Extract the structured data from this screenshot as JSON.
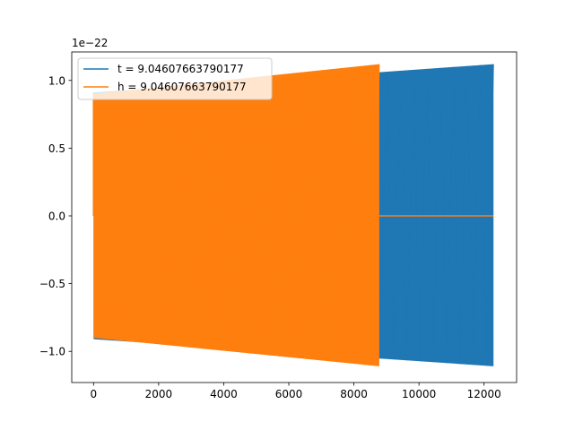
{
  "chart_data": {
    "type": "line",
    "offset_text": "1e−22",
    "xlim": [
      -670,
      13000
    ],
    "ylim": [
      -1.23,
      1.21
    ],
    "xticks": [
      0,
      2000,
      4000,
      6000,
      8000,
      10000,
      12000
    ],
    "xtick_labels": [
      "0",
      "2000",
      "4000",
      "6000",
      "8000",
      "10000",
      "12000"
    ],
    "yticks": [
      -1.0,
      -0.5,
      0.0,
      0.5,
      1.0
    ],
    "ytick_labels": [
      "−1.0",
      "−0.5",
      "0.0",
      "0.5",
      "1.0"
    ],
    "grid": false,
    "legend_position": "upper-left",
    "series": [
      {
        "name": "t = 9.04607663790177",
        "color": "#1f77b4",
        "x_end": 12290,
        "env_upper": [
          [
            0,
            0.91
          ],
          [
            12290,
            1.12
          ]
        ],
        "env_lower": [
          [
            0,
            -0.91
          ],
          [
            12290,
            -1.11
          ]
        ],
        "tail_value": 0.0
      },
      {
        "name": "h = 9.04607663790177",
        "color": "#ff7f0e",
        "x_end": 8780,
        "env_upper": [
          [
            0,
            0.9
          ],
          [
            8780,
            1.12
          ]
        ],
        "env_lower": [
          [
            0,
            -0.9
          ],
          [
            8780,
            -1.11
          ]
        ],
        "tail_x": [
          8780,
          12290
        ],
        "tail_value": 0.0
      }
    ]
  }
}
